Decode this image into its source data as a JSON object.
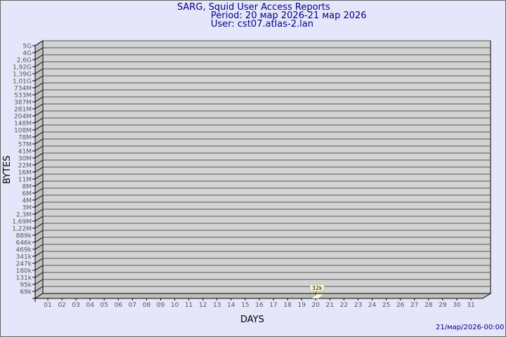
{
  "header": {
    "title": "SARG, Squid User Access Reports",
    "period": "Period: 20 мар 2026-21 мар 2026",
    "user": "User: cst07.atlas-2.lan"
  },
  "footer": {
    "timestamp": "21/мар/2026-00:00"
  },
  "chart_data": {
    "type": "bar",
    "xlabel": "DAYS",
    "ylabel": "BYTES",
    "y_scale": "log",
    "y_tick_labels": [
      "5G",
      "4G",
      "2,6G",
      "1,92G",
      "1,39G",
      "1,01G",
      "734M",
      "533M",
      "387M",
      "281M",
      "204M",
      "148M",
      "108M",
      "78M",
      "57M",
      "41M",
      "30M",
      "22M",
      "16M",
      "11M",
      "8M",
      "6M",
      "4M",
      "3M",
      "2,3M",
      "1,69M",
      "1,22M",
      "889k",
      "646k",
      "469k",
      "341k",
      "247k",
      "180k",
      "131k",
      "95k",
      "69k"
    ],
    "categories": [
      "01",
      "02",
      "03",
      "04",
      "05",
      "06",
      "07",
      "08",
      "09",
      "10",
      "11",
      "12",
      "13",
      "14",
      "15",
      "16",
      "17",
      "18",
      "19",
      "20",
      "21",
      "22",
      "23",
      "24",
      "25",
      "26",
      "27",
      "28",
      "29",
      "30",
      "31"
    ],
    "bars": [
      {
        "day": "20",
        "value": 32000,
        "label": "32k"
      }
    ],
    "grid": true,
    "colors": {
      "plot": "#d3d3d3",
      "bar": "#fffacd",
      "text": "#00008b",
      "axis": "#000000"
    }
  }
}
